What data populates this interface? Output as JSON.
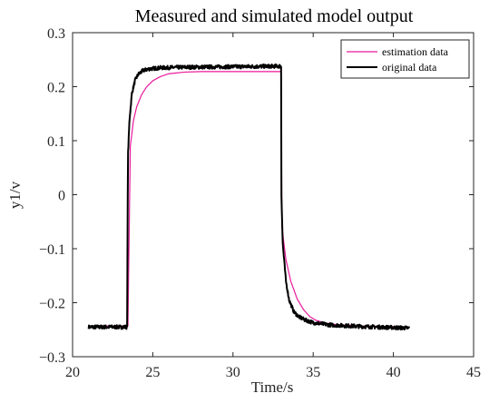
{
  "chart_data": {
    "type": "line",
    "title": "Measured and simulated model output",
    "xlabel": "Time/s",
    "ylabel": "y1/v",
    "xlim": [
      20,
      45
    ],
    "ylim": [
      -0.3,
      0.3
    ],
    "xticks": [
      "20",
      "25",
      "30",
      "35",
      "40",
      "45"
    ],
    "yticks": [
      "-0.3",
      "-0.2",
      "-0.1",
      "0",
      "0.1",
      "0.2",
      "0.3"
    ],
    "grid": false,
    "legend_position": "top-right",
    "series": [
      {
        "name": "estimation data",
        "color": "#e8199a",
        "x": [
          21.0,
          23.45,
          23.6,
          23.8,
          24.0,
          24.3,
          24.6,
          25.0,
          25.5,
          26.0,
          27.0,
          28.0,
          30.0,
          33.0,
          33.05,
          33.3,
          33.6,
          34.0,
          34.4,
          34.8,
          35.2,
          35.8,
          36.5,
          38.0,
          41.0
        ],
        "y": [
          -0.243,
          -0.243,
          0.09,
          0.138,
          0.163,
          0.185,
          0.199,
          0.211,
          0.219,
          0.224,
          0.227,
          0.228,
          0.228,
          0.228,
          -0.06,
          -0.12,
          -0.16,
          -0.193,
          -0.213,
          -0.226,
          -0.233,
          -0.238,
          -0.241,
          -0.243,
          -0.245
        ]
      },
      {
        "name": "original data",
        "color": "#000000",
        "x": [
          21.0,
          23.4,
          23.45,
          23.55,
          23.7,
          23.9,
          24.1,
          24.4,
          24.8,
          25.5,
          27.0,
          30.0,
          33.0,
          33.02,
          33.1,
          33.3,
          33.5,
          33.8,
          34.1,
          34.5,
          35.0,
          36.0,
          38.0,
          41.0
        ],
        "y": [
          -0.245,
          -0.245,
          0.07,
          0.14,
          0.188,
          0.212,
          0.223,
          0.23,
          0.233,
          0.235,
          0.236,
          0.237,
          0.238,
          0.0,
          -0.09,
          -0.16,
          -0.195,
          -0.217,
          -0.226,
          -0.232,
          -0.237,
          -0.241,
          -0.244,
          -0.247
        ]
      }
    ]
  }
}
